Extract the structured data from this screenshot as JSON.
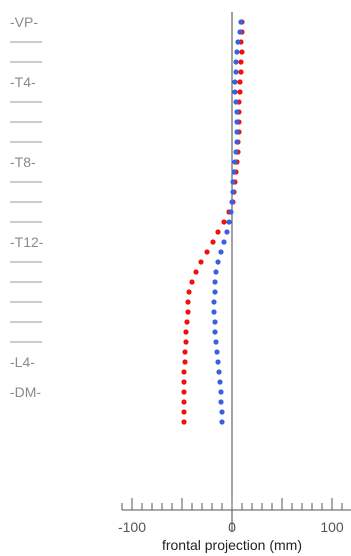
{
  "chart_data": {
    "type": "scatter",
    "title": "",
    "xlabel": "frontal projection (mm)",
    "ylabel": "",
    "xlim": [
      -110,
      120
    ],
    "ylim": [
      -35,
      1
    ],
    "x_ticks": [
      -100,
      0,
      100
    ],
    "x_tick_labels": [
      "-100",
      "0",
      "100"
    ],
    "vertebra_labels": [
      {
        "level": 3,
        "label": "-VP-"
      },
      {
        "level": 4,
        "label": ""
      },
      {
        "level": 5,
        "label": ""
      },
      {
        "level": 6,
        "label": "-T4-"
      },
      {
        "level": 7,
        "label": ""
      },
      {
        "level": 8,
        "label": ""
      },
      {
        "level": 9,
        "label": ""
      },
      {
        "level": 10,
        "label": "-T8-"
      },
      {
        "level": 11,
        "label": ""
      },
      {
        "level": 12,
        "label": ""
      },
      {
        "level": 13,
        "label": ""
      },
      {
        "level": 14,
        "label": "-T12-"
      },
      {
        "level": 15,
        "label": ""
      },
      {
        "level": 16,
        "label": ""
      },
      {
        "level": 17,
        "label": ""
      },
      {
        "level": 18,
        "label": ""
      },
      {
        "level": 19,
        "label": ""
      },
      {
        "level": 20,
        "label": "-L4-"
      },
      {
        "level": 21.5,
        "label": "-DM-"
      }
    ],
    "series": [
      {
        "color": "#ee1111",
        "points": [
          [
            10,
            3.0
          ],
          [
            10,
            3.5
          ],
          [
            9,
            4.0
          ],
          [
            10,
            4.5
          ],
          [
            9,
            5.0
          ],
          [
            9,
            5.5
          ],
          [
            8,
            6.0
          ],
          [
            8,
            6.5
          ],
          [
            7,
            7.0
          ],
          [
            7,
            7.5
          ],
          [
            7,
            8.0
          ],
          [
            7,
            8.5
          ],
          [
            6,
            9.0
          ],
          [
            6,
            9.5
          ],
          [
            5,
            10.0
          ],
          [
            4,
            10.5
          ],
          [
            3,
            11.0
          ],
          [
            2,
            11.5
          ],
          [
            1,
            12.0
          ],
          [
            -3,
            12.5
          ],
          [
            -8,
            13.0
          ],
          [
            -14,
            13.5
          ],
          [
            -19,
            14.0
          ],
          [
            -25,
            14.5
          ],
          [
            -31,
            15.0
          ],
          [
            -36,
            15.5
          ],
          [
            -40,
            16.0
          ],
          [
            -43,
            16.5
          ],
          [
            -44,
            17.0
          ],
          [
            -44,
            17.5
          ],
          [
            -45,
            18.0
          ],
          [
            -46,
            18.5
          ],
          [
            -46,
            19.0
          ],
          [
            -47,
            19.5
          ],
          [
            -47,
            20.0
          ],
          [
            -48,
            20.5
          ],
          [
            -48,
            21.0
          ],
          [
            -48,
            21.5
          ],
          [
            -48,
            22.0
          ],
          [
            -48,
            22.5
          ],
          [
            -48,
            23.0
          ]
        ]
      },
      {
        "color": "#3a60dd",
        "points": [
          [
            9,
            3.0
          ],
          [
            8,
            3.5
          ],
          [
            6,
            4.0
          ],
          [
            5,
            4.5
          ],
          [
            4,
            5.0
          ],
          [
            4,
            5.5
          ],
          [
            3,
            6.0
          ],
          [
            3,
            6.5
          ],
          [
            4,
            7.0
          ],
          [
            5,
            7.5
          ],
          [
            5,
            8.0
          ],
          [
            5,
            8.5
          ],
          [
            5,
            9.0
          ],
          [
            4,
            9.5
          ],
          [
            3,
            10.0
          ],
          [
            2,
            10.5
          ],
          [
            1,
            11.0
          ],
          [
            1,
            11.5
          ],
          [
            0,
            12.0
          ],
          [
            -1,
            12.5
          ],
          [
            -3,
            13.0
          ],
          [
            -5,
            13.5
          ],
          [
            -8,
            14.0
          ],
          [
            -11,
            14.5
          ],
          [
            -14,
            15.0
          ],
          [
            -16,
            15.5
          ],
          [
            -17,
            16.0
          ],
          [
            -17,
            16.5
          ],
          [
            -18,
            17.0
          ],
          [
            -18,
            17.5
          ],
          [
            -17,
            18.0
          ],
          [
            -17,
            18.5
          ],
          [
            -16,
            19.0
          ],
          [
            -15,
            19.5
          ],
          [
            -14,
            20.0
          ],
          [
            -13,
            20.5
          ],
          [
            -12,
            21.0
          ],
          [
            -11,
            21.5
          ],
          [
            -11,
            22.0
          ],
          [
            -10,
            22.5
          ],
          [
            -10,
            23.0
          ]
        ]
      }
    ]
  }
}
